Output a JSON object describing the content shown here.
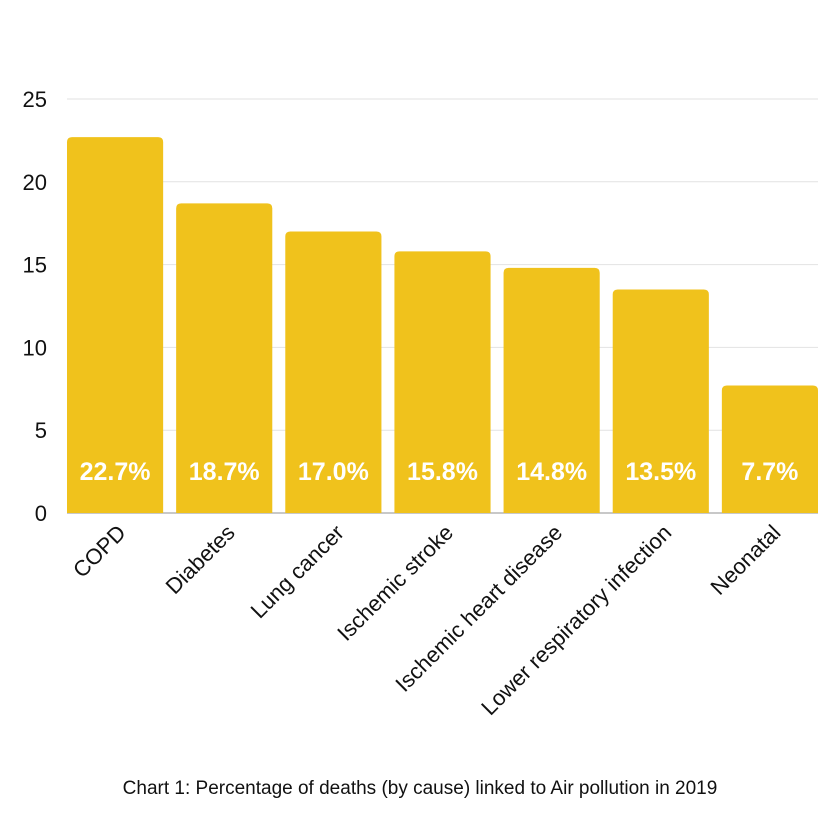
{
  "chart_data": {
    "type": "bar",
    "categories": [
      "COPD",
      "Diabetes",
      "Lung cancer",
      "Ischemic stroke",
      "Ischemic heart disease",
      "Lower respiratory infection",
      "Neonatal"
    ],
    "values": [
      22.7,
      18.7,
      17.0,
      15.8,
      14.8,
      13.5,
      7.7
    ],
    "data_labels": [
      "22.7%",
      "18.7%",
      "17.0%",
      "15.8%",
      "14.8%",
      "13.5%",
      "7.7%"
    ],
    "title": "Chart 1: Percentage of deaths (by cause) linked to Air pollution in 2019",
    "xlabel": "",
    "ylabel": "",
    "ylim": [
      0,
      25
    ],
    "yticks": [
      0,
      5,
      10,
      15,
      20,
      25
    ],
    "grid": true,
    "bar_color": "#F0C21C",
    "label_color": "#FFFFFF"
  }
}
